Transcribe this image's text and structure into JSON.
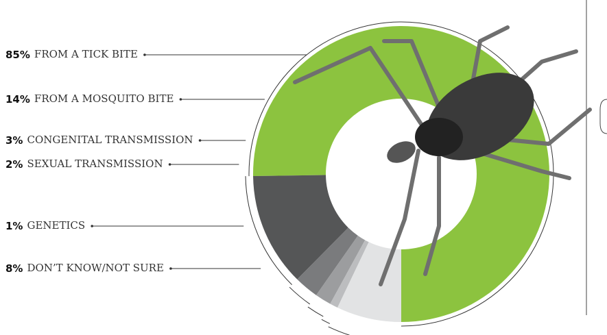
{
  "chart_data": {
    "type": "donut",
    "categories": [
      "FROM A TICK BITE",
      "FROM A MOSQUITO BITE",
      "CONGENITAL TRANSMISSION",
      "SEXUAL TRANSMISSION",
      "GENETICS",
      "DON’T KNOW/NOT SURE"
    ],
    "values": [
      85,
      14,
      3,
      2,
      1,
      8
    ],
    "value_labels": [
      "85%",
      "14%",
      "3%",
      "2%",
      "1%",
      "8%"
    ],
    "colors": [
      "#8cc33f",
      "#555657",
      "#7a7b7d",
      "#9c9d9f",
      "#bcbdbf",
      "#e2e3e4"
    ]
  }
}
